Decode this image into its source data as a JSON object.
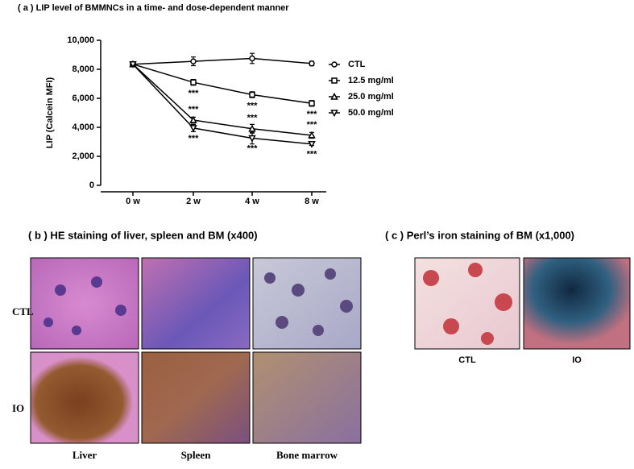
{
  "chart_data": {
    "type": "line",
    "title": "( a ) LIP level of BMMNCs in a time- and dose-dependent manner",
    "y_label": "LIP (Calcein MFI)",
    "categories": [
      "0 w",
      "2 w",
      "4 w",
      "8 w"
    ],
    "ylim": [
      0,
      10000
    ],
    "yticks": [
      0,
      {
        "value": 2000,
        "label": "2,000"
      },
      {
        "value": 4000,
        "label": "4,000"
      },
      {
        "value": 6000,
        "label": "6,000"
      },
      {
        "value": 8000,
        "label": "8,000"
      },
      {
        "value": 10000,
        "label": "10,000"
      }
    ],
    "series": [
      {
        "name": "CTL",
        "color": "#000000",
        "marker": "circle",
        "values": [
          8350,
          8550,
          8750,
          8400
        ],
        "errors": [
          100,
          300,
          350,
          150
        ],
        "significance": [
          null,
          null,
          null,
          null
        ]
      },
      {
        "name": "12.5 mg/ml",
        "color": "#000000",
        "marker": "square",
        "values": [
          8350,
          7100,
          6250,
          5650
        ],
        "errors": [
          100,
          200,
          200,
          200
        ],
        "significance": [
          null,
          "***",
          "***",
          "***"
        ]
      },
      {
        "name": "25.0 mg/ml",
        "color": "#000000",
        "marker": "triangle-up",
        "values": [
          8350,
          4500,
          3900,
          3450
        ],
        "errors": [
          100,
          200,
          300,
          200
        ],
        "significance": [
          null,
          "***",
          "***",
          "***"
        ]
      },
      {
        "name": "50.0 mg/ml",
        "color": "#000000",
        "marker": "triangle-down",
        "values": [
          8350,
          3950,
          3250,
          2850
        ],
        "errors": [
          100,
          250,
          400,
          100
        ],
        "significance": [
          null,
          "***",
          "***",
          "***"
        ]
      }
    ]
  },
  "panel_b": {
    "title": "( b ) HE staining of liver, spleen and BM (x400)",
    "rows": [
      "CTL",
      "IO"
    ],
    "columns": [
      "Liver",
      "Spleen",
      "Bone marrow"
    ]
  },
  "panel_c": {
    "title": "( c ) Perl’s iron staining of BM (x1,000)",
    "columns": [
      "CTL",
      "IO"
    ]
  }
}
